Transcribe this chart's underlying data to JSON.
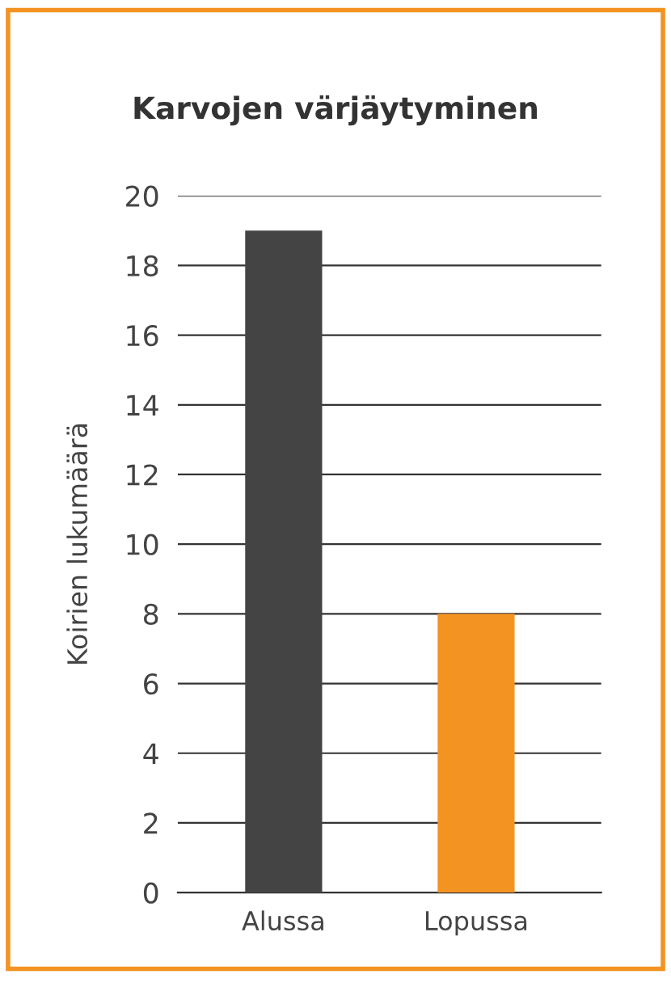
{
  "chart_data": {
    "type": "bar",
    "title": "Karvojen värjäytyminen",
    "ylabel": "Koirien lukumäärä",
    "categories": [
      "Alussa",
      "Lopussa"
    ],
    "values": [
      19,
      8
    ],
    "colors": [
      "#444444",
      "#f39322"
    ],
    "ylim": [
      0,
      20
    ],
    "yticks": [
      0,
      2,
      4,
      6,
      8,
      10,
      12,
      14,
      16,
      18,
      20
    ],
    "grid": "y",
    "legend": false
  }
}
